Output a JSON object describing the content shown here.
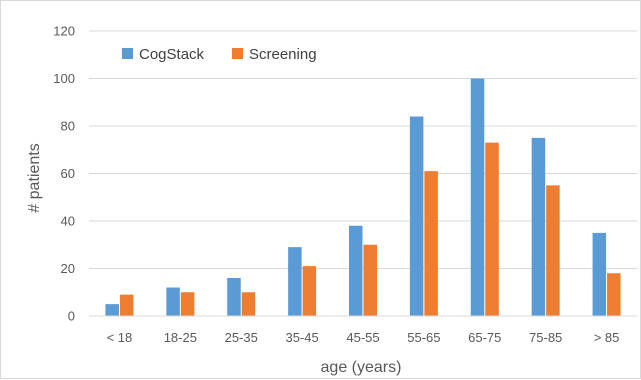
{
  "chart_data": {
    "type": "bar",
    "title": "",
    "xlabel": "age (years)",
    "ylabel": "# patients",
    "categories": [
      "< 18",
      "18-25",
      "25-35",
      "35-45",
      "45-55",
      "55-65",
      "65-75",
      "75-85",
      "> 85"
    ],
    "series": [
      {
        "name": "CogStack",
        "color": "#5b9bd5",
        "values": [
          5,
          12,
          16,
          29,
          38,
          84,
          100,
          75,
          35
        ]
      },
      {
        "name": "Screening",
        "color": "#ed7d31",
        "values": [
          9,
          10,
          10,
          21,
          30,
          61,
          73,
          55,
          18
        ]
      }
    ],
    "ylim": [
      0,
      120
    ],
    "yticks": [
      "0",
      "20",
      "40",
      "60",
      "80",
      "100",
      "120"
    ],
    "grid": true,
    "legend": "top-left"
  }
}
